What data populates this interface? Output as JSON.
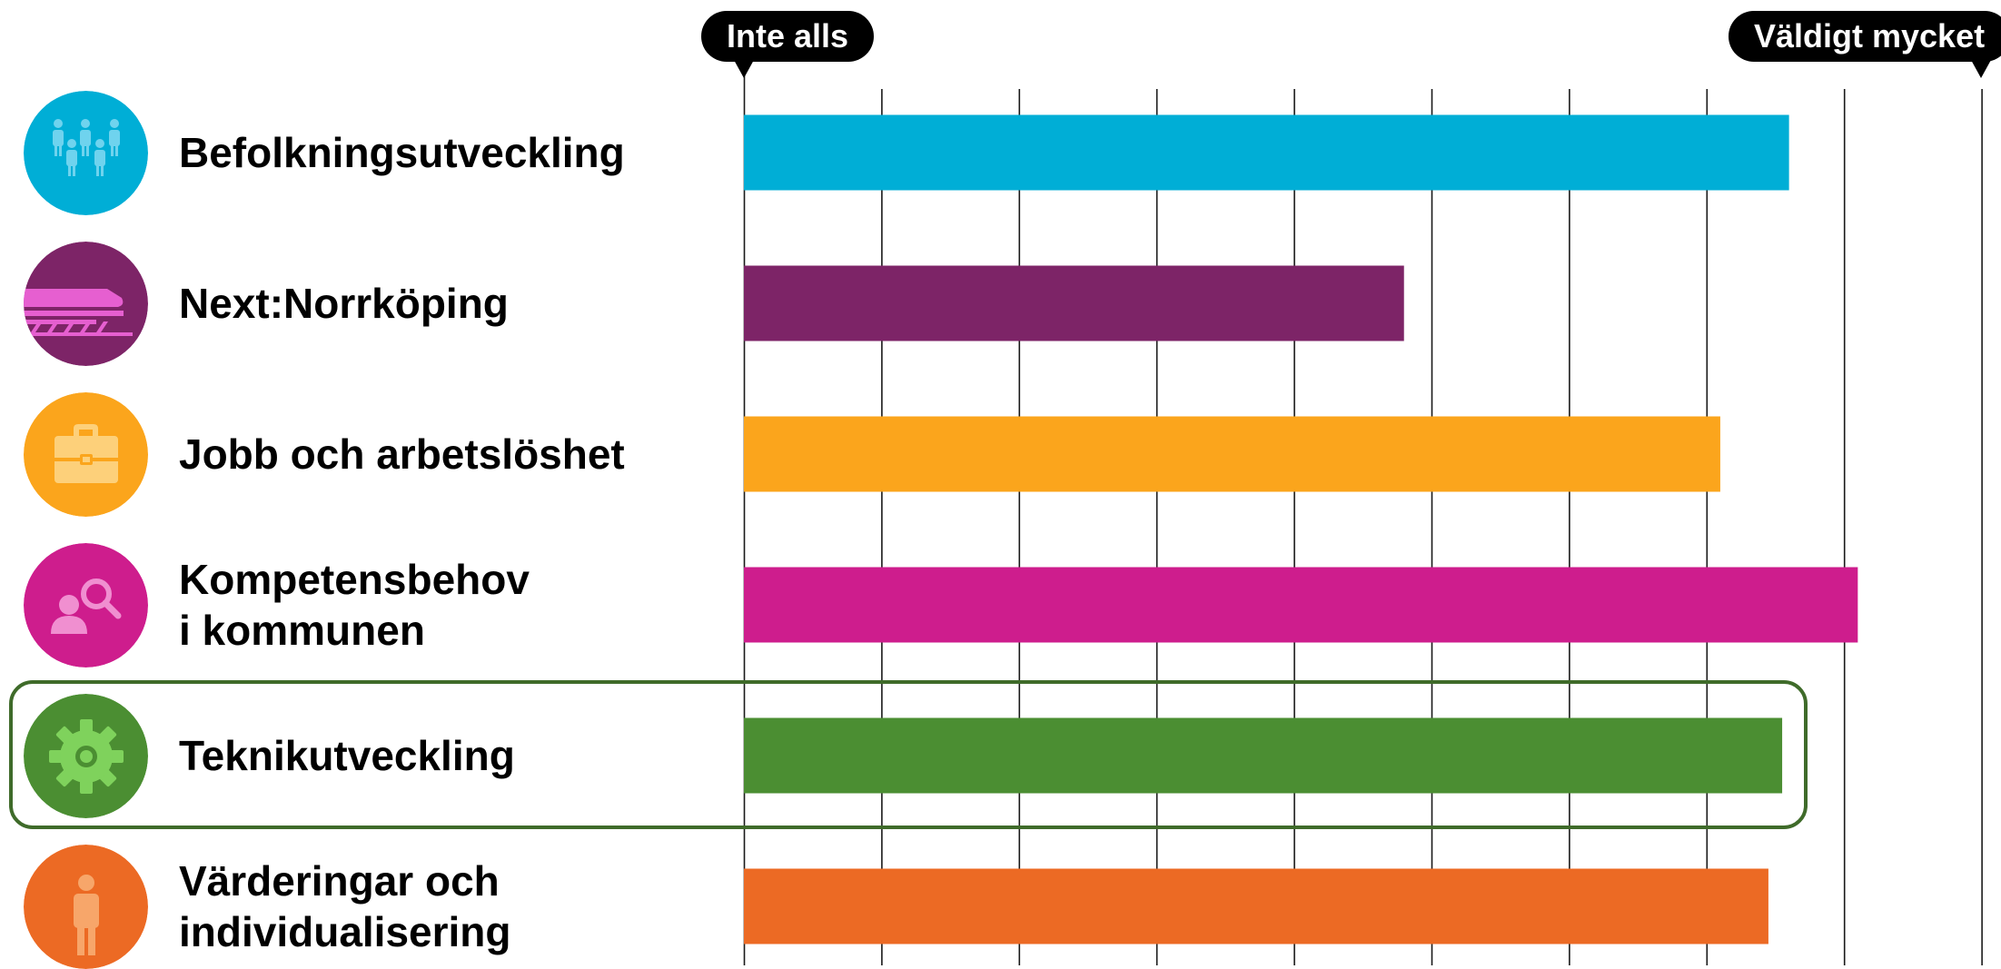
{
  "chart_data": {
    "type": "bar",
    "orientation": "horizontal",
    "scale_left_label": "Inte alls",
    "scale_right_label": "Väldigt mycket",
    "xlim": [
      0,
      9
    ],
    "gridlines": 9,
    "categories": [
      {
        "lines": [
          "Befolkningsutveckling"
        ],
        "icon": "people-group-icon",
        "color": "#00AED6",
        "value": 7.6
      },
      {
        "lines": [
          "Next:Norrköping"
        ],
        "icon": "train-icon",
        "color": "#7D2467",
        "value": 4.8
      },
      {
        "lines": [
          "Jobb och arbetslöshet"
        ],
        "icon": "briefcase-icon",
        "color": "#FBA51C",
        "value": 7.1
      },
      {
        "lines": [
          "Kompetensbehov",
          "i kommunen"
        ],
        "icon": "person-search-icon",
        "color": "#CE1D8D",
        "value": 8.1
      },
      {
        "lines": [
          "Teknikutveckling"
        ],
        "icon": "gear-icon",
        "color": "#4B8E32",
        "value": 7.55,
        "highlighted": true
      },
      {
        "lines": [
          "Värderingar och",
          "individualisering"
        ],
        "icon": "person-icon",
        "color": "#EC6A24",
        "value": 7.45
      }
    ],
    "highlight_color": "#3F6B2A",
    "grid_color": "#1a1a1a"
  }
}
